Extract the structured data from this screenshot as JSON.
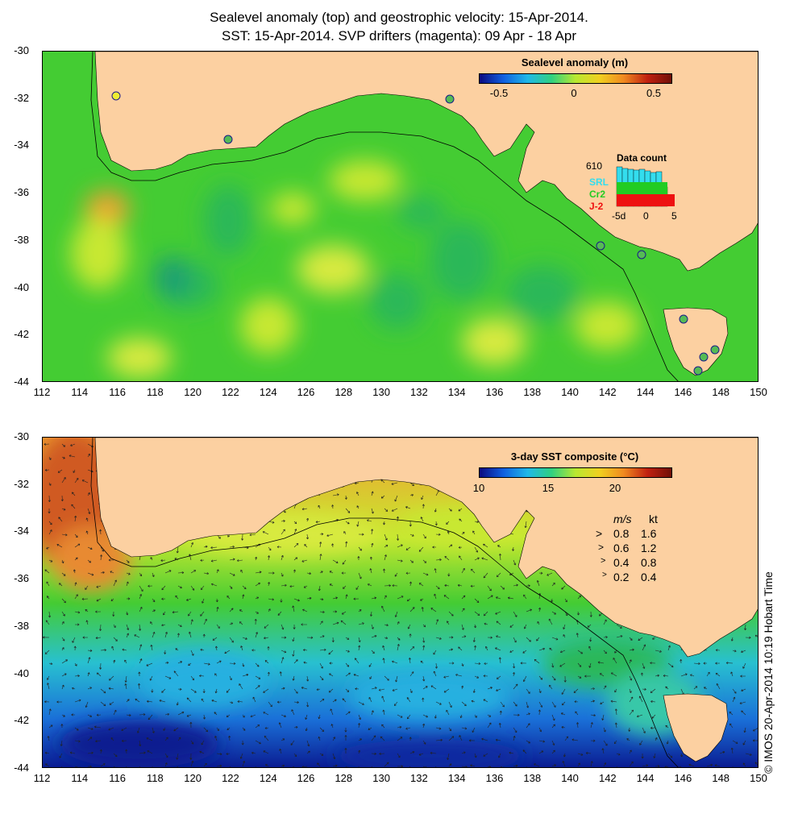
{
  "titles": {
    "line1": "Sealevel anomaly (top) and geostrophic velocity: 15-Apr-2014.",
    "line2": "SST: 15-Apr-2014. SVP drifters (magenta): 09 Apr - 18 Apr"
  },
  "axes": {
    "x_ticks": [
      "112",
      "114",
      "116",
      "118",
      "120",
      "122",
      "124",
      "126",
      "128",
      "130",
      "132",
      "134",
      "136",
      "138",
      "140",
      "142",
      "144",
      "146",
      "148",
      "150"
    ],
    "y_ticks": [
      "-30",
      "-32",
      "-34",
      "-36",
      "-38",
      "-40",
      "-42",
      "-44"
    ],
    "lon_range": [
      112,
      150
    ],
    "lat_range": [
      -30,
      -44
    ]
  },
  "top_panel": {
    "colorbar_title": "Sealevel anomaly (m)",
    "colorbar_ticks": [
      "-0.5",
      "0",
      "0.5"
    ],
    "data_count": {
      "title": "Data count",
      "max_label": "610",
      "missions": [
        {
          "name": "SRL",
          "color": "#33ddee"
        },
        {
          "name": "Cr2",
          "color": "#22cc22"
        },
        {
          "name": "J-2",
          "color": "#ee1111"
        }
      ],
      "x_ticks": [
        "-5d",
        "0",
        "5"
      ]
    },
    "colors": {
      "land": "#fcd0a1",
      "ocean_base": "#44cc33",
      "coast": "#000000"
    }
  },
  "bottom_panel": {
    "colorbar_title": "3-day SST composite (°C)",
    "colorbar_ticks": [
      "10",
      "15",
      "20"
    ],
    "speed_legend": {
      "header_ms": "m/s",
      "header_kt": "kt",
      "rows": [
        {
          "ms": "0.8",
          "kt": "1.6"
        },
        {
          "ms": "0.6",
          "kt": "1.2"
        },
        {
          "ms": "0.4",
          "kt": "0.8"
        },
        {
          "ms": "0.2",
          "kt": "0.4"
        }
      ]
    },
    "credit": "© IMOS 20-Apr-2014 10:19 Hobart Time"
  }
}
